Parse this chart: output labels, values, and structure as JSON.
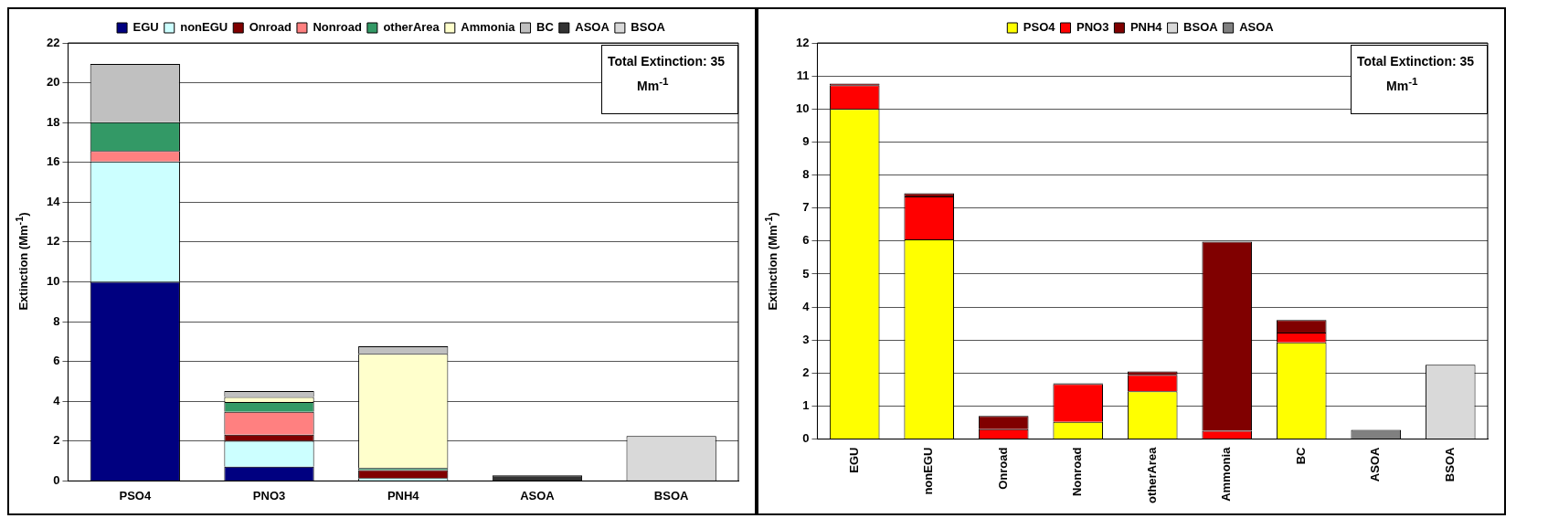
{
  "chart_data": [
    {
      "type": "bar",
      "stacked": true,
      "categories": [
        "PSO4",
        "PNO3",
        "PNH4",
        "ASOA",
        "BSOA"
      ],
      "ylabel": "Extinction (Mm$^{-1}$)",
      "ylim": [
        0,
        22
      ],
      "yticks": [
        0,
        2,
        4,
        6,
        8,
        10,
        12,
        14,
        16,
        18,
        20,
        22
      ],
      "grid": "y",
      "legend": "top",
      "annotations": [
        "Total Extinction: 35 Mm$^{-1}$"
      ],
      "series": [
        {
          "name": "EGU",
          "color": "#000080",
          "values": [
            10,
            0.72,
            null,
            null,
            null
          ]
        },
        {
          "name": "nonEGU",
          "color": "#ccffff",
          "values": [
            6.05,
            1.3,
            0.15,
            null,
            null
          ]
        },
        {
          "name": "Onroad",
          "color": "#800000",
          "values": [
            0,
            0.3,
            0.4,
            null,
            null
          ]
        },
        {
          "name": "Nonroad",
          "color": "#ff8080",
          "values": [
            0.52,
            1.15,
            null,
            null,
            null
          ]
        },
        {
          "name": "otherArea",
          "color": "#339966",
          "values": [
            1.45,
            0.5,
            0.1,
            null,
            null
          ]
        },
        {
          "name": "Ammonia",
          "color": "#ffffcc",
          "values": [
            0,
            0.25,
            5.73,
            null,
            null
          ]
        },
        {
          "name": "BC",
          "color": "#c0c0c0",
          "values": [
            2.93,
            0.3,
            0.38,
            null,
            null
          ]
        },
        {
          "name": "ASOA",
          "color": "#333333",
          "values": [
            null,
            null,
            null,
            0.28,
            null
          ]
        },
        {
          "name": "BSOA",
          "color": "#d9d9d9",
          "values": [
            null,
            null,
            null,
            null,
            2.25
          ]
        }
      ]
    },
    {
      "type": "bar",
      "stacked": true,
      "categories": [
        "EGU",
        "nonEGU",
        "Onroad",
        "Nonroad",
        "otherArea",
        "Ammonia",
        "BC",
        "ASOA",
        "BSOA"
      ],
      "ylabel": "Extinction (Mm$^{-1}$)",
      "ylim": [
        0,
        12
      ],
      "yticks": [
        0,
        1,
        2,
        3,
        4,
        5,
        6,
        7,
        8,
        9,
        10,
        11,
        12
      ],
      "grid": "y",
      "legend": "top",
      "annotations": [
        "Total Extinction: 35 Mm$^{-1}$"
      ],
      "series": [
        {
          "name": "PSO4",
          "color": "#ffff00",
          "values": [
            10,
            6.05,
            0,
            0.52,
            1.45,
            0,
            2.93,
            null,
            null
          ]
        },
        {
          "name": "PNO3",
          "color": "#ff0000",
          "values": [
            0.72,
            1.3,
            0.3,
            1.15,
            0.5,
            0.25,
            0.3,
            null,
            null
          ]
        },
        {
          "name": "PNH4",
          "color": "#800000",
          "values": [
            0.05,
            0.1,
            0.4,
            0.02,
            0.1,
            5.73,
            0.38,
            null,
            null
          ]
        },
        {
          "name": "BSOA",
          "color": "#d9d9d9",
          "values": [
            null,
            null,
            null,
            null,
            null,
            null,
            null,
            null,
            2.25
          ]
        },
        {
          "name": "ASOA",
          "color": "#808080",
          "values": [
            null,
            null,
            null,
            null,
            null,
            null,
            null,
            0.28,
            null
          ]
        }
      ]
    }
  ]
}
